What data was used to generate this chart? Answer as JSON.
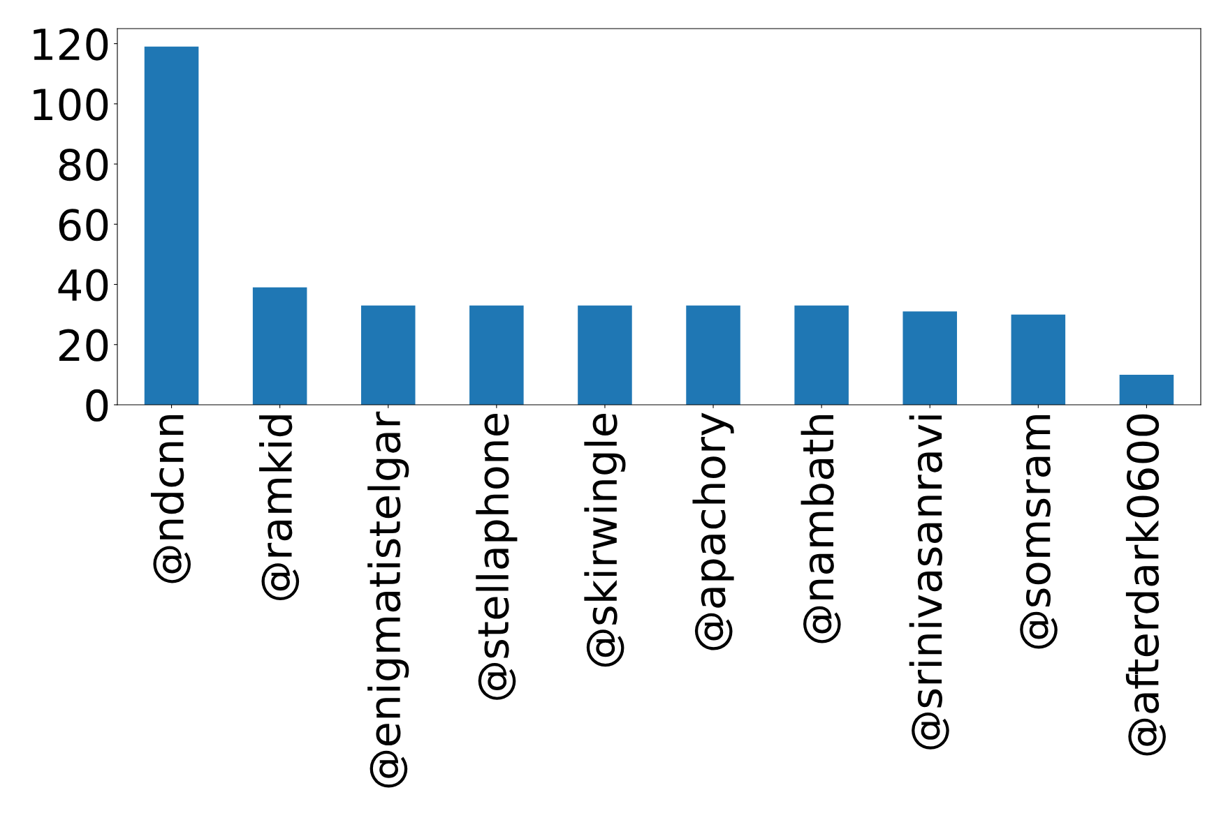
{
  "chart_data": {
    "type": "bar",
    "categories": [
      "@ndcnn",
      "@ramkid",
      "@enigmatistelgar",
      "@stellaphone",
      "@skirwingle",
      "@apachory",
      "@nambath",
      "@srinivasanravi",
      "@somsram",
      "@afterdark0600"
    ],
    "values": [
      119,
      39,
      33,
      33,
      33,
      33,
      33,
      31,
      30,
      10
    ],
    "color": "#1f77b4",
    "ylim": [
      0,
      125
    ],
    "yticks": [
      0,
      20,
      40,
      60,
      80,
      100,
      120
    ],
    "grid": false,
    "legend": false
  }
}
